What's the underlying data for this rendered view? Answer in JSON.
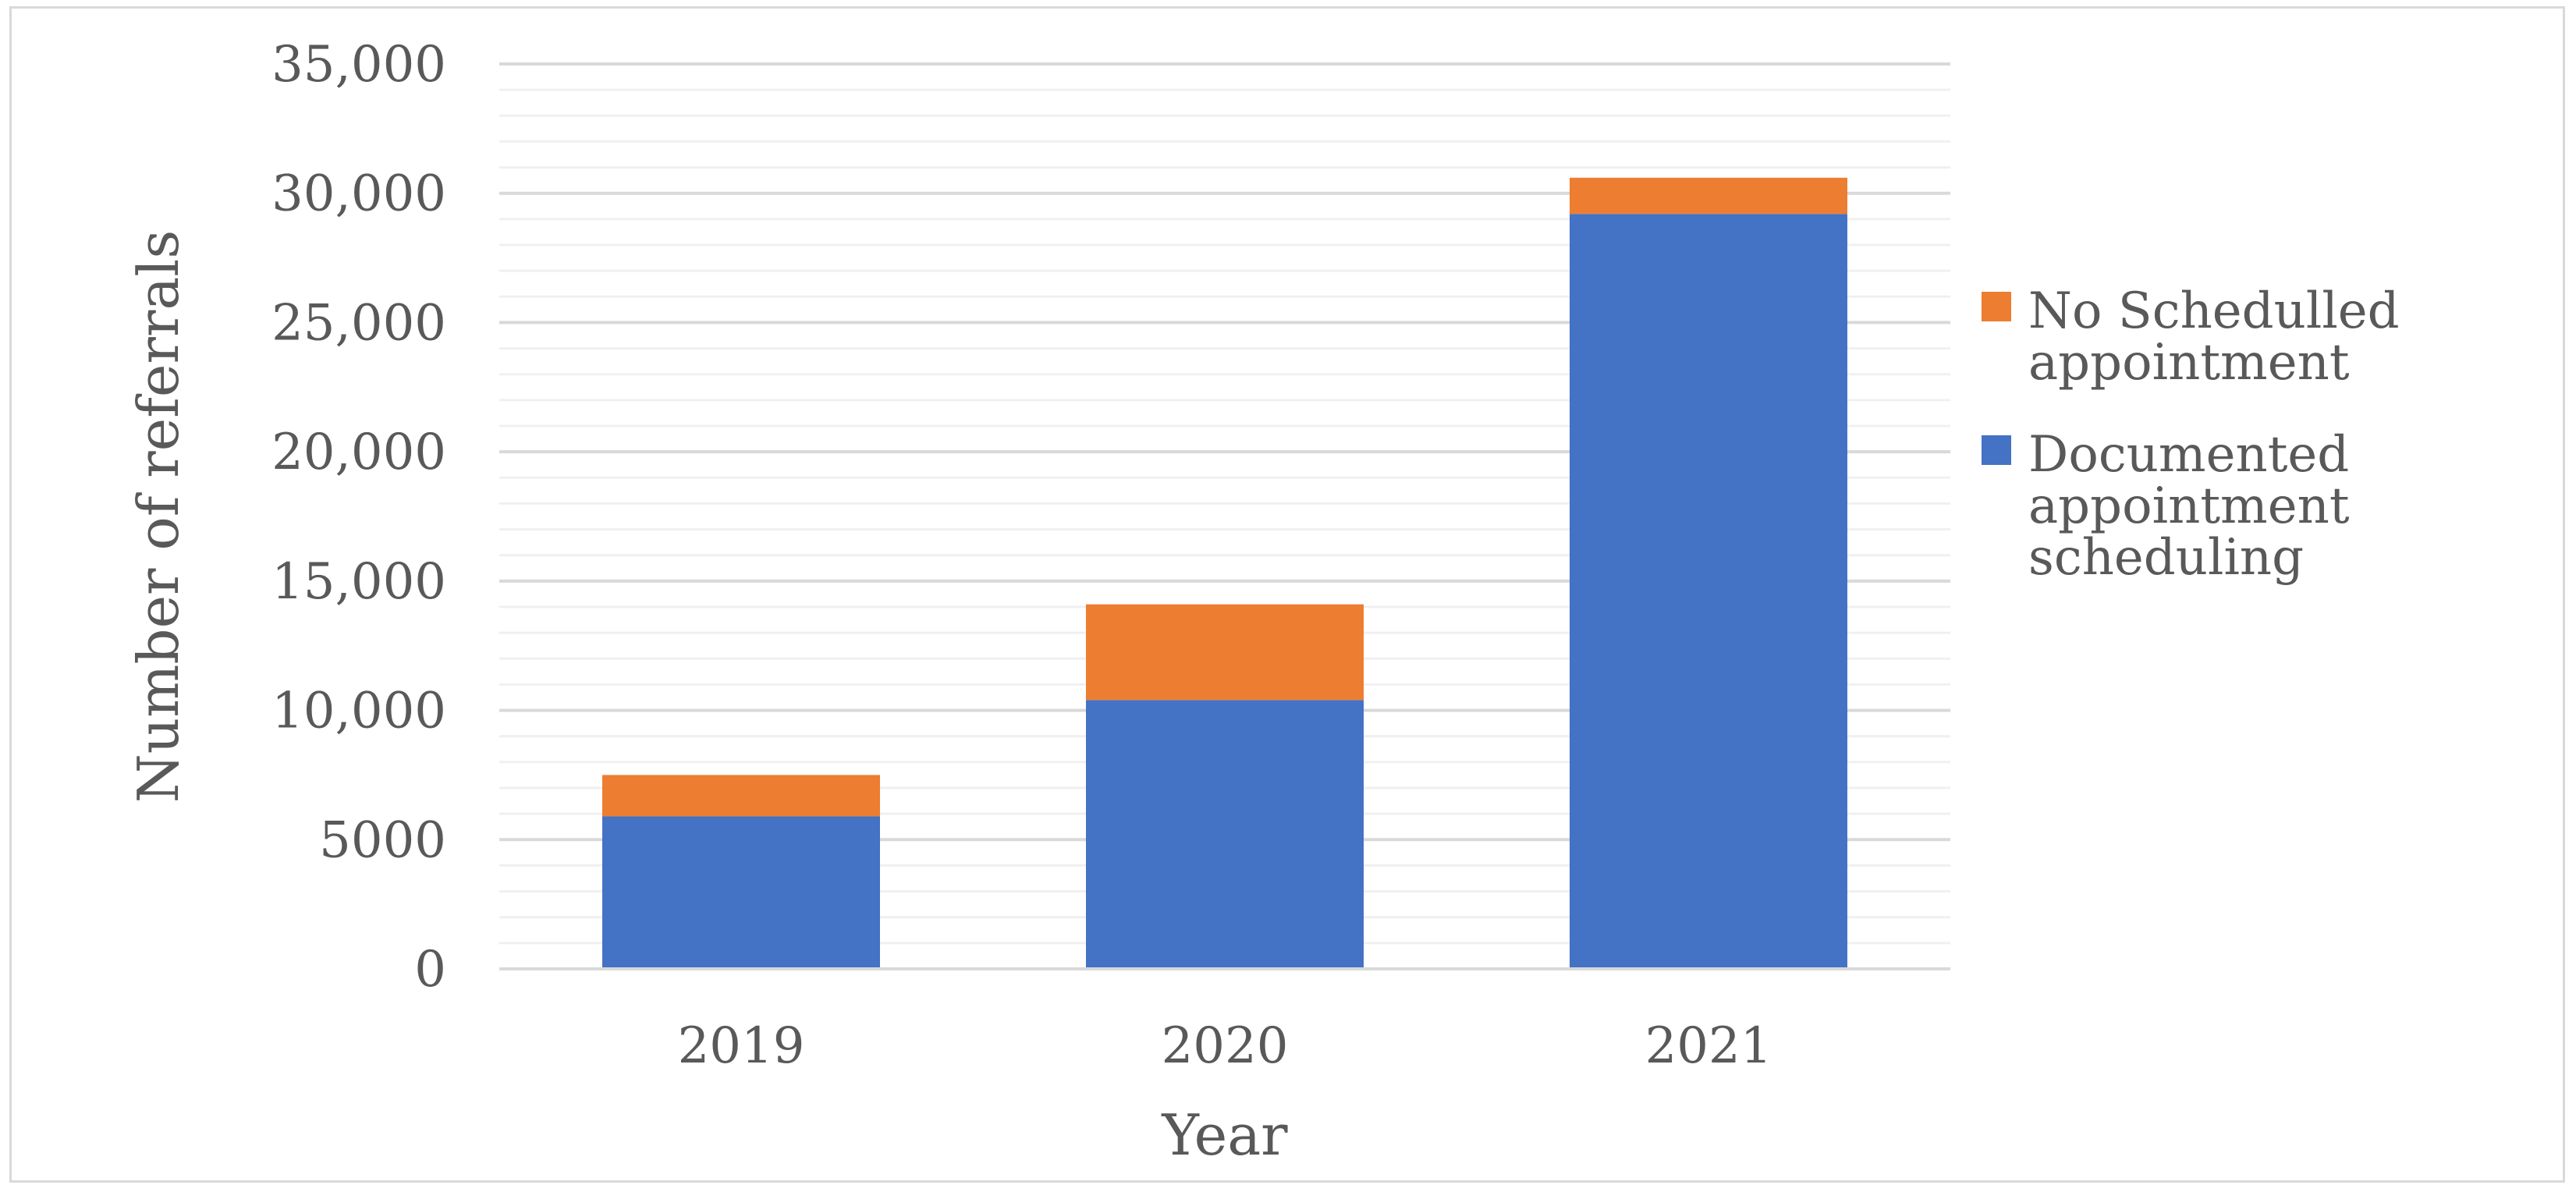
{
  "chart_data": {
    "type": "bar",
    "stacked": true,
    "categories": [
      "2019",
      "2020",
      "2021"
    ],
    "series": [
      {
        "name": "Documented appointment scheduling",
        "legend_lines": [
          "Documented",
          "appointment",
          "scheduling"
        ],
        "color": "#4472c4",
        "values": [
          5900,
          10400,
          29200
        ]
      },
      {
        "name": "No Schedulled appointment",
        "legend_lines": [
          "No Schedulled",
          "appointment"
        ],
        "color": "#ed7d31",
        "values": [
          1600,
          3700,
          1400
        ]
      }
    ],
    "xlabel": "Year",
    "ylabel": "Number of referrals",
    "ylim": [
      0,
      35000
    ],
    "yticks": [
      0,
      5000,
      10000,
      15000,
      20000,
      25000,
      30000,
      35000
    ],
    "ytick_labels": [
      "0",
      "5000",
      "10,000",
      "15,000",
      "20,000",
      "25,000",
      "30,000",
      "35,000"
    ],
    "minor_step": 1000,
    "grid": true,
    "legend_position": "right",
    "legend_order": [
      1,
      0
    ]
  }
}
